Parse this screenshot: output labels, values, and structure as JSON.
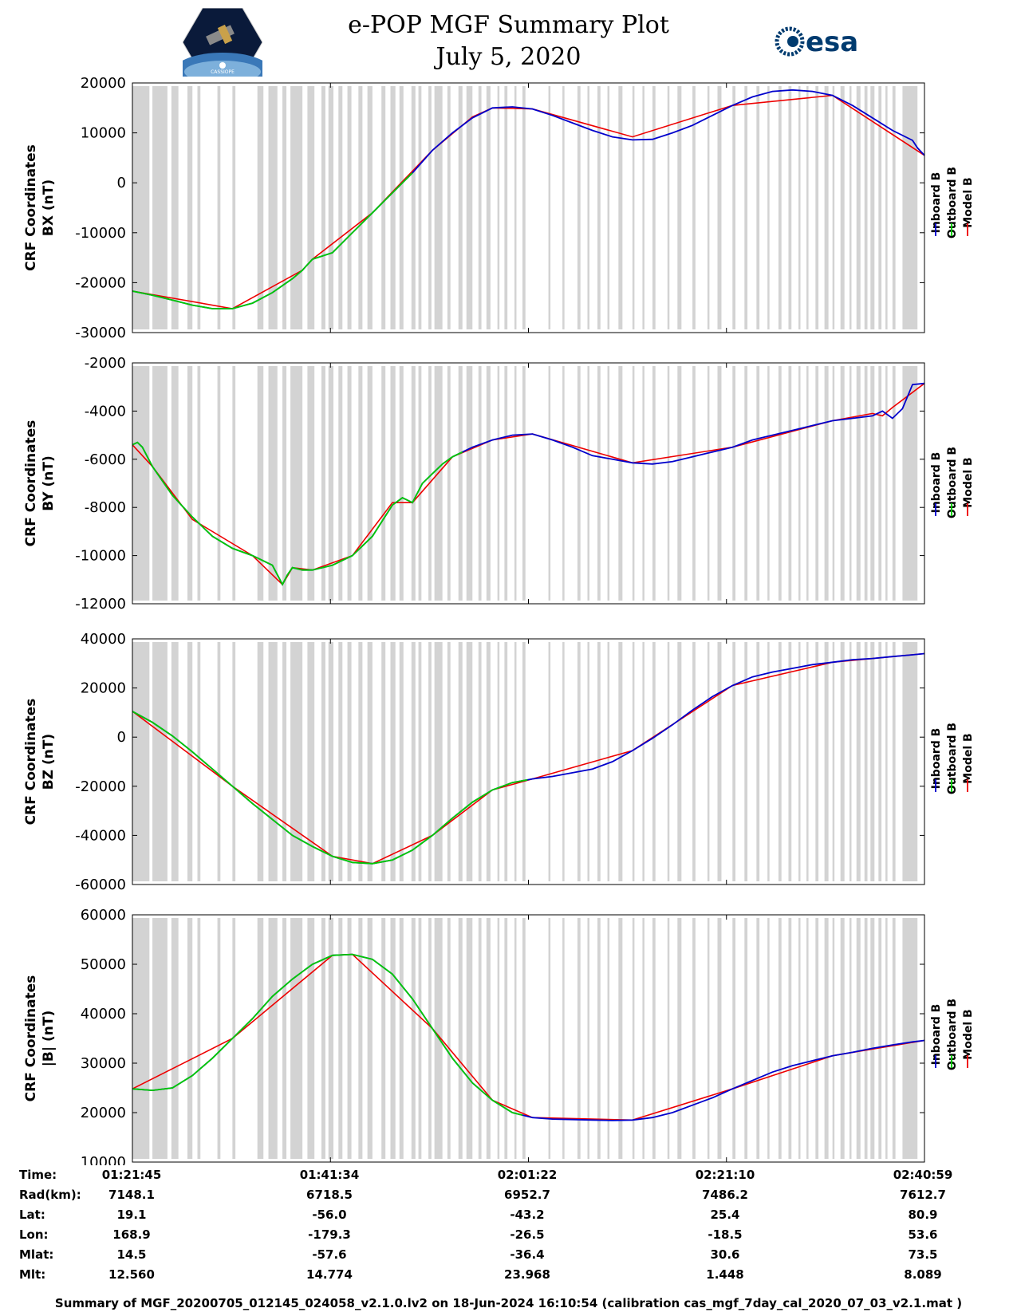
{
  "header": {
    "title_line1": "e-POP MGF Summary Plot",
    "title_line2": "July 5, 2020",
    "logo_left_text": "CASSIOPE",
    "logo_right_text": "esa"
  },
  "legend": [
    "Inboard B",
    "Outboard B",
    "Model B"
  ],
  "colors": {
    "inboard": "#0000cc",
    "outboard": "#00cc00",
    "model": "#ee0000",
    "gap_shade": "#d3d3d3"
  },
  "chart_data": [
    {
      "type": "line",
      "ylabel_line1": "CRF Coordinates",
      "ylabel_line2": "BX (nT)",
      "ylim": [
        -30000,
        20000
      ],
      "yticks": [
        "-30000",
        "-20000",
        "-10000",
        "0",
        "10000",
        "20000"
      ],
      "x_unit": "minutes since 01:21:45",
      "outboard_end": 28,
      "series": [
        {
          "name": "Inboard B",
          "x": [
            0,
            2,
            4,
            6,
            8,
            10,
            12,
            14,
            16,
            17,
            18,
            20,
            22,
            24,
            26,
            28,
            30,
            32,
            34,
            36,
            38,
            40,
            42,
            44,
            46,
            48,
            50,
            52,
            54,
            56,
            58,
            60,
            62,
            64,
            66,
            68,
            70,
            72,
            74,
            76,
            78,
            78.5,
            79.2
          ],
          "y": [
            -21700,
            -22500,
            -23500,
            -24500,
            -25200,
            -25200,
            -24100,
            -22000,
            -19200,
            -17500,
            -15300,
            -14000,
            -10000,
            -6000,
            -2000,
            2000,
            6500,
            10000,
            13000,
            15000,
            15200,
            14800,
            13500,
            12000,
            10500,
            9200,
            8600,
            8700,
            10000,
            11500,
            13500,
            15500,
            17200,
            18300,
            18600,
            18300,
            17500,
            15500,
            13000,
            10500,
            8500,
            7000,
            5500
          ]
        },
        {
          "name": "Model B",
          "x": [
            0,
            10,
            17,
            18,
            24,
            30,
            34,
            36,
            40,
            50,
            60,
            70,
            79.2
          ],
          "y": [
            -21700,
            -25200,
            -17500,
            -15300,
            -6000,
            6500,
            13200,
            15000,
            14800,
            9200,
            15500,
            17500,
            5500
          ]
        }
      ]
    },
    {
      "type": "line",
      "ylabel_line1": "CRF Coordinates",
      "ylabel_line2": "BY (nT)",
      "ylim": [
        -12000,
        -2000
      ],
      "yticks": [
        "-12000",
        "-10000",
        "-8000",
        "-6000",
        "-4000",
        "-2000"
      ],
      "x_unit": "minutes since 01:21:45",
      "outboard_end": 33,
      "series": [
        {
          "name": "Inboard B",
          "x": [
            0,
            0.5,
            1,
            1.5,
            2,
            3,
            4,
            6,
            8,
            10,
            12,
            14,
            15,
            15.5,
            16,
            17,
            18,
            20,
            22,
            24,
            26,
            27,
            28,
            29,
            30,
            31,
            32,
            34,
            36,
            38,
            40,
            42,
            44,
            46,
            48,
            50,
            52,
            54,
            56,
            58,
            60,
            62,
            64,
            66,
            68,
            70,
            72,
            74,
            75,
            76,
            77,
            78,
            79.2
          ],
          "y": [
            -5400,
            -5300,
            -5500,
            -5900,
            -6300,
            -6900,
            -7500,
            -8400,
            -9200,
            -9700,
            -10000,
            -10400,
            -11200,
            -10800,
            -10500,
            -10600,
            -10600,
            -10400,
            -10000,
            -9200,
            -7900,
            -7600,
            -7800,
            -7000,
            -6600,
            -6200,
            -5900,
            -5500,
            -5200,
            -5000,
            -4950,
            -5200,
            -5500,
            -5850,
            -6000,
            -6150,
            -6200,
            -6100,
            -5900,
            -5700,
            -5500,
            -5200,
            -5000,
            -4800,
            -4600,
            -4400,
            -4300,
            -4200,
            -4000,
            -4300,
            -3900,
            -2900,
            -2850
          ]
        },
        {
          "name": "Model B",
          "x": [
            0,
            2,
            6,
            12,
            15,
            16,
            18,
            22,
            26,
            28,
            32,
            36,
            40,
            50,
            60,
            70,
            74,
            75,
            76,
            79.2
          ],
          "y": [
            -5400,
            -6300,
            -8500,
            -10000,
            -11200,
            -10500,
            -10600,
            -10000,
            -7800,
            -7800,
            -5900,
            -5200,
            -4950,
            -6150,
            -5500,
            -4400,
            -4100,
            -4200,
            -3850,
            -2850
          ]
        }
      ]
    },
    {
      "type": "line",
      "ylabel_line1": "CRF Coordinates",
      "ylabel_line2": "BZ (nT)",
      "ylim": [
        -60000,
        40000
      ],
      "yticks": [
        "-60000",
        "-40000",
        "-20000",
        "0",
        "20000",
        "40000"
      ],
      "x_unit": "minutes since 01:21:45",
      "outboard_end": 39.5,
      "series": [
        {
          "name": "Inboard B",
          "x": [
            0,
            2,
            4,
            6,
            8,
            10,
            12,
            14,
            16,
            18,
            20,
            22,
            24,
            26,
            28,
            30,
            32,
            34,
            36,
            38,
            40,
            42,
            44,
            46,
            48,
            50,
            52,
            54,
            56,
            58,
            60,
            62,
            64,
            66,
            68,
            70,
            72,
            74,
            76,
            78,
            79.2
          ],
          "y": [
            10500,
            6000,
            500,
            -6000,
            -13000,
            -20000,
            -27000,
            -33500,
            -40000,
            -44500,
            -48500,
            -51000,
            -51500,
            -50000,
            -46000,
            -40000,
            -33000,
            -26500,
            -21500,
            -18500,
            -17000,
            -16000,
            -14500,
            -13000,
            -10000,
            -5500,
            -500,
            5000,
            11000,
            16500,
            21000,
            24500,
            26500,
            28000,
            29500,
            30500,
            31500,
            32000,
            32800,
            33500,
            34000
          ]
        },
        {
          "name": "Model B",
          "x": [
            0,
            10,
            20,
            24,
            30,
            36,
            40,
            50,
            60,
            70,
            79.2
          ],
          "y": [
            10500,
            -20000,
            -48500,
            -51500,
            -40000,
            -21500,
            -17000,
            -5500,
            21000,
            30500,
            34000
          ]
        }
      ]
    },
    {
      "type": "line",
      "ylabel_line1": "CRF Coordinates",
      "ylabel_line2": "|B| (nT)",
      "ylim": [
        10000,
        60000
      ],
      "yticks": [
        "10000",
        "20000",
        "30000",
        "40000",
        "50000",
        "60000"
      ],
      "x_unit": "minutes since 01:21:45",
      "outboard_end": 39,
      "series": [
        {
          "name": "Inboard B",
          "x": [
            0,
            2,
            4,
            6,
            8,
            10,
            12,
            14,
            16,
            18,
            20,
            22,
            24,
            26,
            28,
            30,
            32,
            34,
            36,
            38,
            40,
            42,
            44,
            46,
            48,
            50,
            52,
            54,
            56,
            58,
            60,
            62,
            64,
            66,
            68,
            70,
            72,
            74,
            76,
            78,
            79.2
          ],
          "y": [
            24800,
            24500,
            25000,
            27500,
            31000,
            35000,
            39000,
            43500,
            47000,
            50000,
            51800,
            52000,
            51000,
            48000,
            43000,
            37000,
            31000,
            26000,
            22500,
            20000,
            19000,
            18700,
            18600,
            18500,
            18400,
            18500,
            19000,
            20000,
            21500,
            23000,
            24800,
            26500,
            28200,
            29500,
            30500,
            31500,
            32200,
            33000,
            33700,
            34300,
            34600
          ]
        },
        {
          "name": "Model B",
          "x": [
            0,
            10,
            20,
            22,
            30,
            36,
            40,
            50,
            60,
            70,
            79.2
          ],
          "y": [
            24800,
            35000,
            51800,
            52000,
            37000,
            22500,
            19000,
            18500,
            24800,
            31500,
            34600
          ]
        }
      ]
    }
  ],
  "time_labels": [
    "01:21:45",
    "01:41:34",
    "02:01:22",
    "02:21:10",
    "02:40:59"
  ],
  "info": {
    "labels": [
      "Time:",
      "Rad(km):",
      "Lat:",
      "Lon:",
      "Mlat:",
      "Mlt:"
    ],
    "rad": [
      "7148.1",
      "6718.5",
      "6952.7",
      "7486.2",
      "7612.7"
    ],
    "lat": [
      "19.1",
      "-56.0",
      "-43.2",
      "25.4",
      "80.9"
    ],
    "lon": [
      "168.9",
      "-179.3",
      "-26.5",
      "-18.5",
      "53.6"
    ],
    "mlat": [
      "14.5",
      "-57.6",
      "-36.4",
      "30.6",
      "73.5"
    ],
    "mlt": [
      "12.560",
      "14.774",
      "23.968",
      "1.448",
      "8.089"
    ]
  },
  "footer": "Summary of MGF_20200705_012145_024058_v2.1.0.lv2 on 18-Jun-2024 16:10:54 (calibration cas_mgf_7day_cal_2020_07_03_v2.1.mat )"
}
